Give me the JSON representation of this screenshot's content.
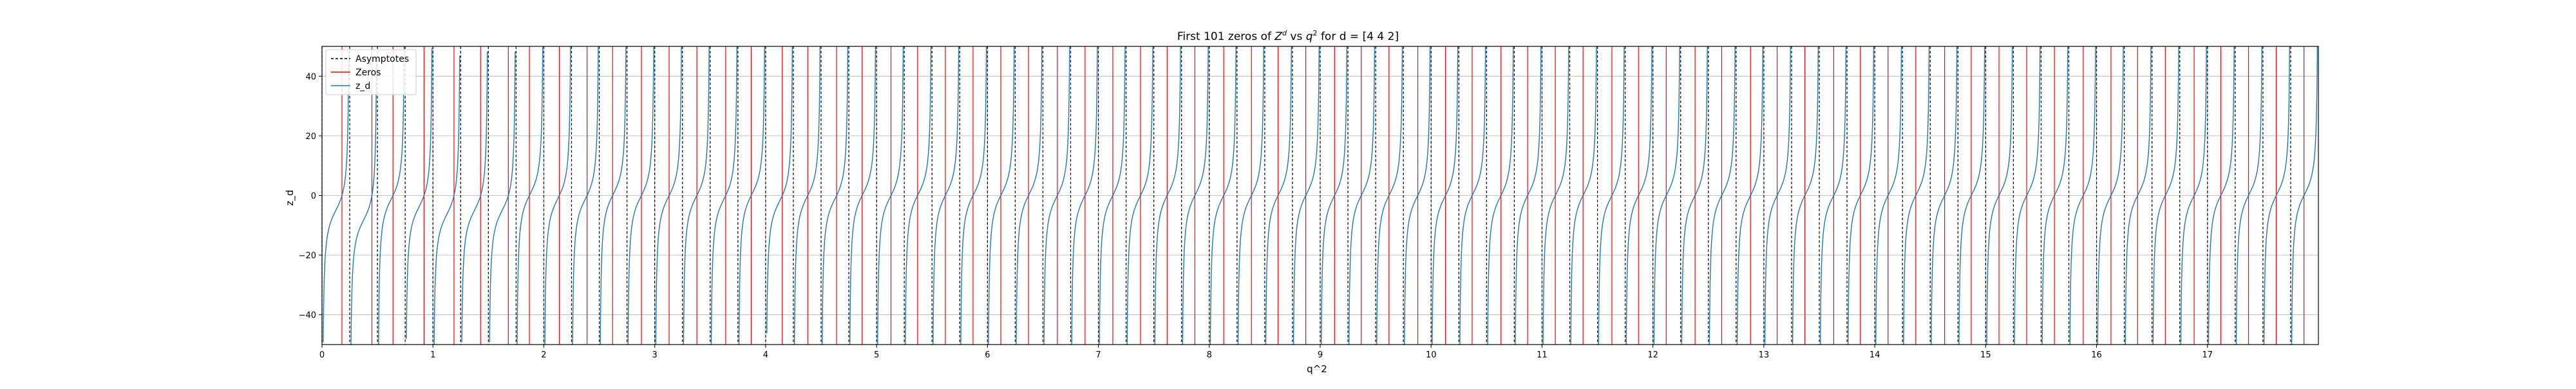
{
  "chart_data": {
    "type": "line",
    "title": "First 101 zeros of Z^d vs q^2 for d = [4 4 2]",
    "title_parts": {
      "prefix": "First 101 zeros of ",
      "z_base": "Z",
      "z_sup": "d",
      "middle": " vs ",
      "q_base": "q",
      "q_sup": "2",
      "suffix": " for d = [4 4 2]"
    },
    "xlabel": "q^2",
    "ylabel": "z_d",
    "xlim": [
      0,
      18
    ],
    "ylim": [
      -50,
      50
    ],
    "grid": true,
    "x_ticks": [
      0,
      1,
      2,
      3,
      4,
      5,
      6,
      7,
      8,
      9,
      10,
      11,
      12,
      13,
      14,
      15,
      16,
      17
    ],
    "x_tick_labels": [
      "0",
      "1",
      "2",
      "3",
      "4",
      "5",
      "6",
      "7",
      "8",
      "9",
      "10",
      "11",
      "12",
      "13",
      "14",
      "15",
      "16",
      "17"
    ],
    "y_ticks": [
      -40,
      -20,
      0,
      20,
      40
    ],
    "y_tick_labels": [
      "−40",
      "−20",
      "0",
      "20",
      "40"
    ],
    "legend": {
      "placement": "upper-left",
      "entries": [
        {
          "label": "Asymptotes",
          "style": "dashed",
          "color": "#000000"
        },
        {
          "label": "Zeros",
          "style": "solid",
          "color": "#ff0000"
        },
        {
          "label": "z_d",
          "style": "solid",
          "color": "#1f77b4"
        }
      ]
    },
    "colors": {
      "asymptote": "#000000",
      "zero": "#ff0000",
      "curve": "#1f77b4",
      "grid": "#b0b0b0"
    },
    "asymptotes": [
      0,
      0.25,
      0.5,
      0.75,
      1.0,
      1.25,
      1.5,
      1.75,
      2.0,
      2.25,
      2.5,
      2.75,
      3.0,
      3.25,
      3.5,
      3.75,
      4.0,
      4.25,
      4.5,
      4.75,
      5.0,
      5.25,
      5.5,
      5.75,
      6.0,
      6.25,
      6.5,
      6.75,
      7.0,
      7.25,
      7.5,
      7.75,
      8.0,
      8.25,
      8.5,
      8.75,
      9.0,
      9.25,
      9.5,
      9.75,
      10.0,
      10.25,
      10.5,
      10.75,
      11.0,
      11.25,
      11.5,
      11.75,
      12.0,
      12.25,
      12.5,
      12.75,
      13.0,
      13.25,
      13.5,
      13.75,
      14.0,
      14.25,
      14.5,
      14.75,
      15.0,
      15.25,
      15.5,
      15.75,
      16.0,
      16.25,
      16.5,
      16.75,
      17.0,
      17.25,
      17.5,
      17.75
    ],
    "zeros": [
      0.18,
      0.45,
      0.64,
      0.92,
      1.19,
      1.43,
      1.68,
      1.87,
      2.14,
      2.39,
      2.62,
      2.88,
      3.13,
      3.38,
      3.64,
      3.87,
      4.15,
      4.38,
      4.64,
      4.87,
      5.13,
      5.37,
      5.62,
      5.87,
      6.12,
      6.37,
      6.63,
      6.88,
      7.13,
      7.38,
      7.62,
      7.87,
      8.13,
      8.38,
      8.62,
      8.87,
      9.13,
      9.37,
      9.62,
      9.88,
      10.13,
      10.37,
      10.63,
      10.87,
      11.12,
      11.37,
      11.63,
      11.87,
      12.12,
      12.38,
      12.62,
      12.88,
      13.12,
      13.37,
      13.63,
      13.87,
      14.12,
      14.37,
      14.63,
      14.87,
      15.12,
      15.37,
      15.62,
      15.88,
      16.13,
      16.37,
      16.62,
      16.88,
      17.12,
      17.37,
      17.62,
      17.87
    ],
    "curve": {
      "name": "z_d",
      "description": "branches of z_d rising between consecutive asymptotes, crossing zero at each zero"
    }
  }
}
